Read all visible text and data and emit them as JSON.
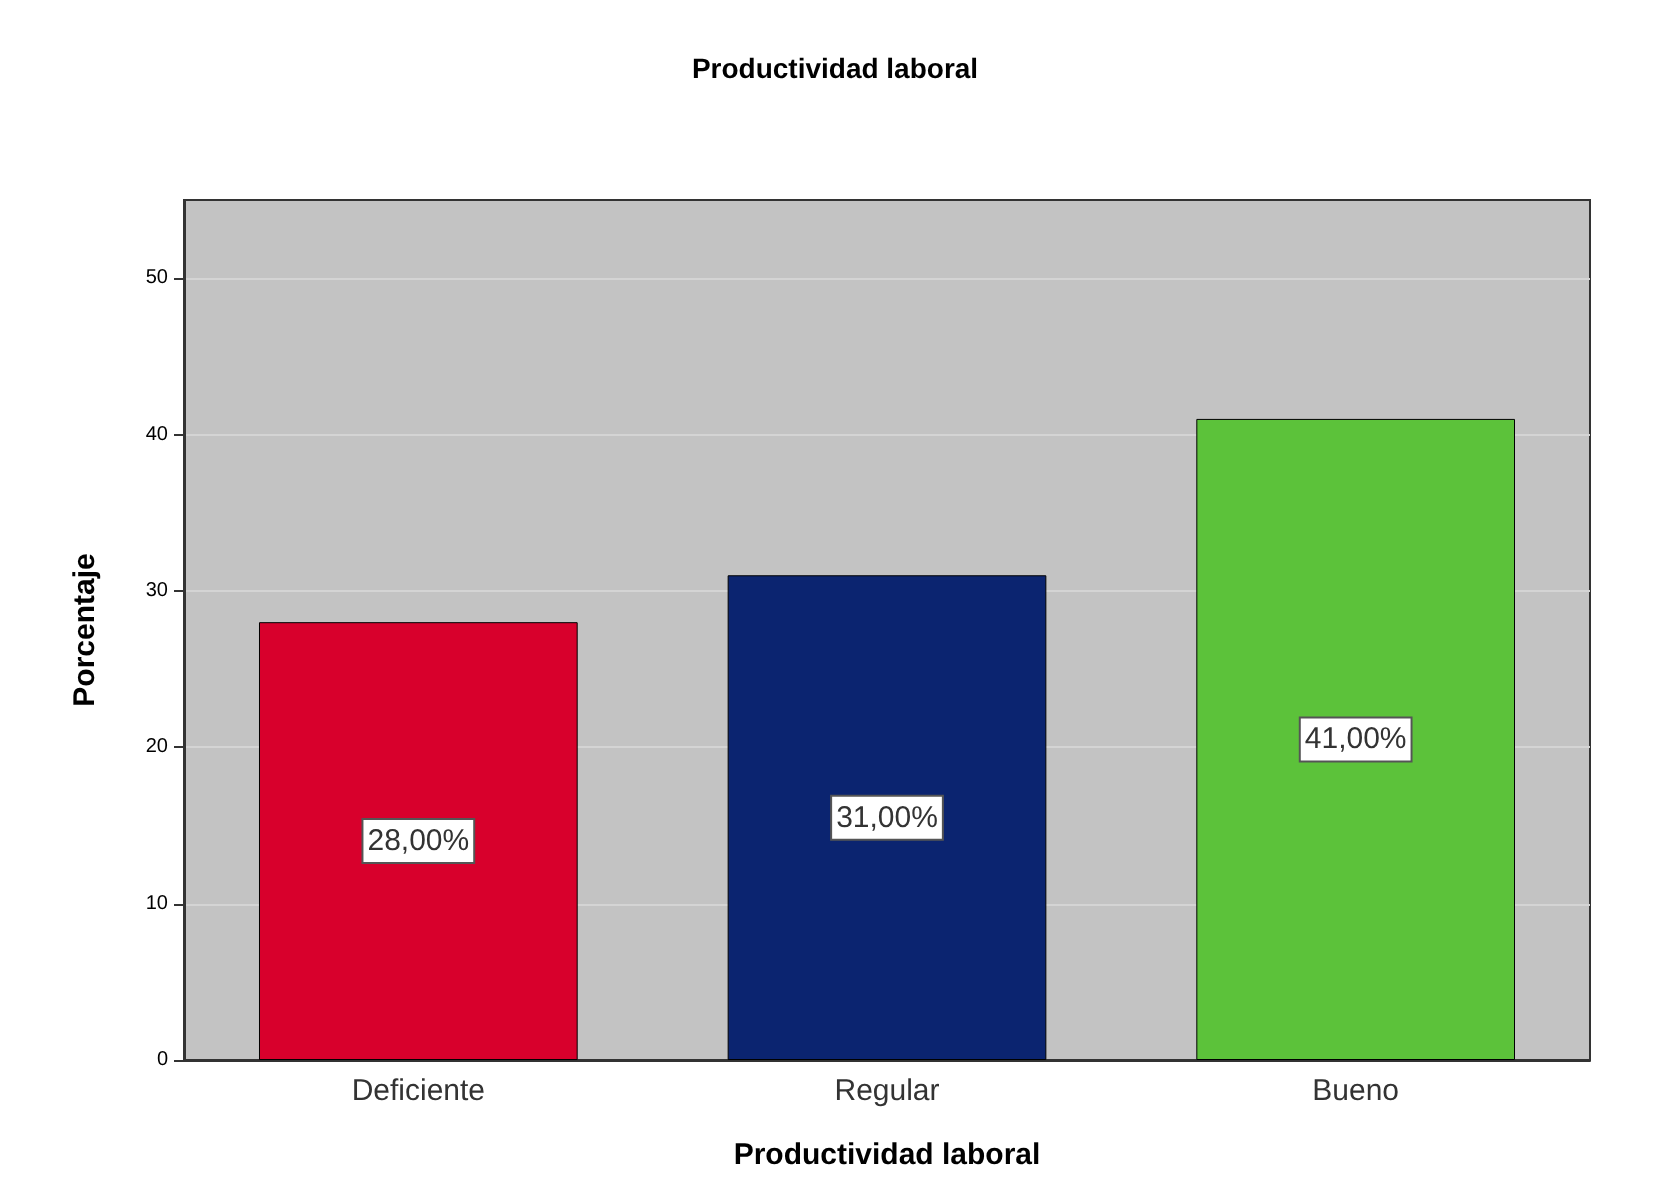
{
  "chart_data": {
    "type": "bar",
    "title": "Productividad laboral",
    "xlabel": "Productividad laboral",
    "ylabel": "Porcentaje",
    "categories": [
      "Deficiente",
      "Regular",
      "Bueno"
    ],
    "values": [
      28,
      31,
      41
    ],
    "colors": [
      "#d8002c",
      "#0b2470",
      "#5cc23a"
    ],
    "value_labels": [
      "28,00%",
      "31,00%",
      "41,00%"
    ],
    "ylim": [
      0,
      55
    ],
    "yticks": [
      0,
      10,
      20,
      30,
      40,
      50
    ],
    "grid": "y"
  }
}
